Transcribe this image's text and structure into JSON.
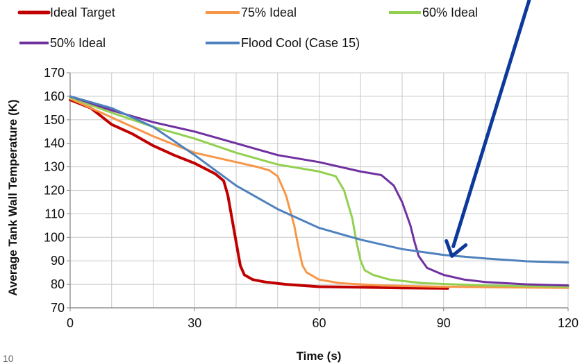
{
  "page": {
    "number": "10"
  },
  "chart_data": {
    "type": "line",
    "title": "",
    "xlabel": "Time (s)",
    "ylabel": "Average Tank Wall Temperature (K)",
    "xlim": [
      0,
      120
    ],
    "ylim": [
      70,
      170
    ],
    "x_ticks": [
      "0",
      "30",
      "60",
      "90",
      "120"
    ],
    "y_ticks": [
      "70",
      "80",
      "90",
      "100",
      "110",
      "120",
      "130",
      "140",
      "150",
      "160",
      "170"
    ],
    "grid": true,
    "legend": "top",
    "annotation": {
      "type": "arrow",
      "color": "#0d3a9a",
      "points_to": [
        92,
        92
      ]
    },
    "series": [
      {
        "name": "Ideal Target",
        "color": "#c00000",
        "points": [
          [
            0,
            158.5
          ],
          [
            5,
            155
          ],
          [
            10,
            148
          ],
          [
            15,
            144
          ],
          [
            20,
            139
          ],
          [
            25,
            135
          ],
          [
            30,
            131.5
          ],
          [
            35,
            127
          ],
          [
            37,
            124
          ],
          [
            38,
            118
          ],
          [
            39,
            108
          ],
          [
            40,
            98
          ],
          [
            41,
            88
          ],
          [
            42,
            84
          ],
          [
            44,
            82
          ],
          [
            47,
            81
          ],
          [
            52,
            80
          ],
          [
            60,
            79
          ],
          [
            70,
            78.8
          ],
          [
            80,
            78.5
          ],
          [
            91,
            78.3
          ]
        ]
      },
      {
        "name": "75% Ideal",
        "color": "#f79646",
        "points": [
          [
            0,
            159
          ],
          [
            10,
            151
          ],
          [
            20,
            143
          ],
          [
            30,
            136
          ],
          [
            40,
            132
          ],
          [
            45,
            130
          ],
          [
            48,
            128.5
          ],
          [
            50,
            126
          ],
          [
            52,
            118
          ],
          [
            54,
            105
          ],
          [
            55,
            96
          ],
          [
            56,
            88
          ],
          [
            57,
            85
          ],
          [
            60,
            82
          ],
          [
            65,
            80.5
          ],
          [
            75,
            79.5
          ],
          [
            90,
            79
          ],
          [
            105,
            78.7
          ],
          [
            120,
            78.5
          ]
        ]
      },
      {
        "name": "60% Ideal",
        "color": "#92d050",
        "points": [
          [
            0,
            159.5
          ],
          [
            10,
            153
          ],
          [
            20,
            147
          ],
          [
            30,
            142
          ],
          [
            40,
            136
          ],
          [
            50,
            131
          ],
          [
            60,
            128
          ],
          [
            64,
            126
          ],
          [
            66,
            120
          ],
          [
            68,
            108
          ],
          [
            69,
            98
          ],
          [
            70,
            90
          ],
          [
            71,
            86
          ],
          [
            73,
            84
          ],
          [
            77,
            82
          ],
          [
            85,
            80.5
          ],
          [
            100,
            79.5
          ],
          [
            120,
            79
          ]
        ]
      },
      {
        "name": "50% Ideal",
        "color": "#7030a0",
        "points": [
          [
            0,
            160
          ],
          [
            10,
            154
          ],
          [
            20,
            149
          ],
          [
            30,
            145
          ],
          [
            40,
            140
          ],
          [
            50,
            135
          ],
          [
            60,
            132
          ],
          [
            70,
            128
          ],
          [
            75,
            126.5
          ],
          [
            78,
            122
          ],
          [
            80,
            115
          ],
          [
            82,
            105
          ],
          [
            83,
            98
          ],
          [
            84,
            92
          ],
          [
            86,
            87
          ],
          [
            90,
            84
          ],
          [
            95,
            82
          ],
          [
            100,
            81
          ],
          [
            110,
            80
          ],
          [
            120,
            79.5
          ]
        ]
      },
      {
        "name": "Flood Cool (Case 15)",
        "color": "#4f81bd",
        "points": [
          [
            0,
            160
          ],
          [
            10,
            155
          ],
          [
            20,
            147
          ],
          [
            30,
            135
          ],
          [
            40,
            122
          ],
          [
            50,
            112
          ],
          [
            60,
            104
          ],
          [
            70,
            99
          ],
          [
            80,
            95
          ],
          [
            90,
            92.5
          ],
          [
            100,
            91
          ],
          [
            110,
            89.8
          ],
          [
            120,
            89.3
          ]
        ]
      }
    ]
  }
}
